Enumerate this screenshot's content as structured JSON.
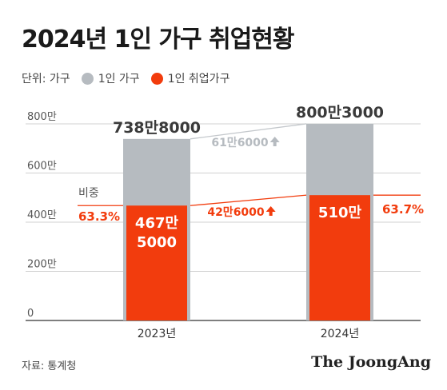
{
  "title": "2024년 1인 가구 취업현황",
  "legend": {
    "unit": "단위: 가구",
    "items": [
      {
        "label": "1인 가구",
        "color": "#b6bbc0"
      },
      {
        "label": "1인 취업가구",
        "color": "#f23c0d"
      }
    ]
  },
  "source": "자료: 통계청",
  "brand": "The JoongAng",
  "chart_data": {
    "type": "bar",
    "categories": [
      "2023년",
      "2024년"
    ],
    "series": [
      {
        "name": "1인 가구",
        "values": [
          7388000,
          8003000
        ],
        "labels": [
          "738만8000",
          "800만3000"
        ],
        "color": "#b6bbc0"
      },
      {
        "name": "1인 취업가구",
        "values": [
          4675000,
          5100000
        ],
        "labels": [
          "467만\n5000",
          "510만"
        ],
        "color": "#f23c0d"
      }
    ],
    "ylim": [
      0,
      8000000
    ],
    "yticks": [
      {
        "value": 0,
        "label": "0"
      },
      {
        "value": 2000000,
        "label": "200만"
      },
      {
        "value": 4000000,
        "label": "400만"
      },
      {
        "value": 6000000,
        "label": "600만"
      },
      {
        "value": 8000000,
        "label": "800만"
      }
    ],
    "grid": true,
    "share": {
      "label": "비중",
      "values": [
        "63.3%",
        "63.7%"
      ]
    },
    "changes": {
      "households": "61만6000",
      "employed": "42만6000"
    }
  }
}
